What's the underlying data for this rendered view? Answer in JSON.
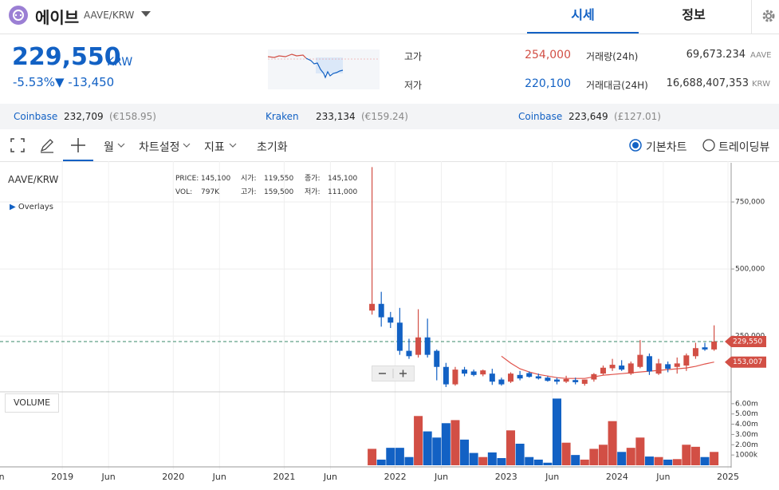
{
  "header": {
    "name": "에이브",
    "pair": "AAVE/KRW",
    "tabs": [
      "시세",
      "정보"
    ]
  },
  "quote": {
    "price": "229,550",
    "unit": "KRW",
    "change_pct": "-5.53%",
    "change": "▼ -13,450",
    "high_label": "고가",
    "high": "254,000",
    "low_label": "저가",
    "low": "220,100",
    "volume_label": "거래량(24h)",
    "volume": "69,673.234",
    "volume_unit": "AAVE",
    "amount_label": "거래대금(24H)",
    "amount": "16,688,407,353",
    "amount_unit": "KRW"
  },
  "exchanges": [
    {
      "name": "Coinbase",
      "price": "232,709",
      "fx": "(€158.95)"
    },
    {
      "name": "Kraken",
      "price": "233,134",
      "fx": "(€159.24)"
    },
    {
      "name": "Coinbase",
      "price": "223,649",
      "fx": "(£127.01)"
    }
  ],
  "toolbar": {
    "period": "월",
    "settings": "차트설정",
    "indicators": "지표",
    "reset": "초기화",
    "basic_chart": "기본차트",
    "tradingview": "트레이딩뷰"
  },
  "chart_info": {
    "symbol": "AAVE/KRW",
    "overlays": "Overlays",
    "volume_button": "VOLUME",
    "price_label": "PRICE:",
    "price": "145,100",
    "open_label": "시가:",
    "open": "119,550",
    "close_label": "종가:",
    "close": "145,100",
    "vol_label": "VOL:",
    "vol": "797K",
    "high_label": "고가:",
    "high": "159,500",
    "low_label": "저가:",
    "low": "111,000"
  },
  "chart_data": {
    "type": "candlestick",
    "up_color": "#d24f45",
    "down_color": "#1261c4",
    "x": [
      "2021-10",
      "2021-11",
      "2021-12",
      "2022-01",
      "2022-02",
      "2022-03",
      "2022-04",
      "2022-05",
      "2022-06",
      "2022-07",
      "2022-08",
      "2022-09",
      "2022-10",
      "2022-11",
      "2022-12",
      "2023-01",
      "2023-02",
      "2023-03",
      "2023-04",
      "2023-05",
      "2023-06",
      "2023-07",
      "2023-08",
      "2023-09",
      "2023-10",
      "2023-11",
      "2023-12",
      "2024-01",
      "2024-02",
      "2024-03",
      "2024-04",
      "2024-05",
      "2024-06",
      "2024-07",
      "2024-08",
      "2024-09",
      "2024-10",
      "2024-11"
    ],
    "open": [
      345000,
      370000,
      320000,
      300000,
      195000,
      180000,
      245000,
      195000,
      135000,
      70000,
      125000,
      118000,
      107000,
      110000,
      88000,
      80000,
      105000,
      112000,
      100000,
      95000,
      88000,
      80000,
      86000,
      72000,
      88000,
      110000,
      130000,
      140000,
      110000,
      135000,
      175000,
      110000,
      145000,
      135000,
      140000,
      175000,
      208000,
      200000
    ],
    "high": [
      880000,
      415000,
      340000,
      355000,
      240000,
      350000,
      315000,
      200000,
      150000,
      135000,
      135000,
      125000,
      125000,
      128000,
      95000,
      115000,
      120000,
      118000,
      110000,
      100000,
      95000,
      102000,
      95000,
      88000,
      112000,
      140000,
      165000,
      160000,
      155000,
      235000,
      185000,
      165000,
      155000,
      170000,
      185000,
      225000,
      225000,
      290000
    ],
    "low": [
      330000,
      285000,
      280000,
      180000,
      165000,
      170000,
      170000,
      85000,
      60000,
      65000,
      100000,
      100000,
      100000,
      68000,
      65000,
      75000,
      85000,
      95000,
      88000,
      80000,
      70000,
      75000,
      70000,
      65000,
      80000,
      105000,
      120000,
      120000,
      105000,
      130000,
      105000,
      105000,
      115000,
      110000,
      120000,
      165000,
      195000,
      195000
    ],
    "close": [
      370000,
      320000,
      300000,
      195000,
      175000,
      245000,
      180000,
      135000,
      70000,
      125000,
      110000,
      105000,
      122000,
      80000,
      70000,
      110000,
      92000,
      98000,
      92000,
      83000,
      80000,
      90000,
      78000,
      88000,
      108000,
      132000,
      143000,
      125000,
      148000,
      180000,
      118000,
      148000,
      128000,
      148000,
      178000,
      205000,
      200000,
      229550
    ],
    "ma": {
      "color": "#e0524a",
      "values": [
        null,
        null,
        null,
        null,
        null,
        null,
        null,
        null,
        null,
        null,
        null,
        null,
        null,
        null,
        175000,
        149000,
        128000,
        116000,
        107000,
        101000,
        95000,
        92000,
        92000,
        92000,
        98000,
        104000,
        107000,
        110000,
        113000,
        116000,
        119000,
        122000,
        125000,
        128000,
        131000,
        137000,
        146000,
        153007
      ]
    },
    "xlim": [
      "2018-06",
      "2025-01"
    ],
    "xticks": [
      {
        "value": "2018-06",
        "label": "Jun"
      },
      {
        "value": "2019-01",
        "label": "2019"
      },
      {
        "value": "2019-06",
        "label": "Jun"
      },
      {
        "value": "2020-01",
        "label": "2020"
      },
      {
        "value": "2020-06",
        "label": "Jun"
      },
      {
        "value": "2021-01",
        "label": "2021"
      },
      {
        "value": "2021-06",
        "label": "Jun"
      },
      {
        "value": "2022-01",
        "label": "2022"
      },
      {
        "value": "2022-06",
        "label": "Jun"
      },
      {
        "value": "2023-01",
        "label": "2023"
      },
      {
        "value": "2023-06",
        "label": "Jun"
      },
      {
        "value": "2024-01",
        "label": "2024"
      },
      {
        "value": "2024-06",
        "label": "Jun"
      },
      {
        "value": "2025-01",
        "label": "2025"
      }
    ],
    "ylim": [
      45000,
      893000
    ],
    "yticks": [
      {
        "value": 250000,
        "label": "250,000"
      },
      {
        "value": 500000,
        "label": "500,000"
      },
      {
        "value": 750000,
        "label": "750,000"
      }
    ],
    "last_price": {
      "value": 229550,
      "label": "229,550"
    },
    "ma_last": {
      "value": 153007,
      "label": "153,007"
    },
    "volume": {
      "values": [
        1600000,
        550000,
        1700000,
        1700000,
        800000,
        4800000,
        3300000,
        2700000,
        4100000,
        4400000,
        2500000,
        1200000,
        800000,
        1250000,
        700000,
        3400000,
        2100000,
        800000,
        550000,
        250000,
        6500000,
        2200000,
        1000000,
        550000,
        1600000,
        2000000,
        4300000,
        1300000,
        1700000,
        2700000,
        850000,
        800000,
        550000,
        600000,
        2000000,
        1800000,
        800000,
        1300000
      ],
      "ylim": [
        0,
        7000000
      ],
      "yticks": [
        {
          "value": 1000000,
          "label": "1000k"
        },
        {
          "value": 2000000,
          "label": "2.00m"
        },
        {
          "value": 3000000,
          "label": "3.00m"
        },
        {
          "value": 4000000,
          "label": "4.00m"
        },
        {
          "value": 5000000,
          "label": "5.00m"
        },
        {
          "value": 6000000,
          "label": "6.00m"
        }
      ]
    },
    "grid": true
  }
}
